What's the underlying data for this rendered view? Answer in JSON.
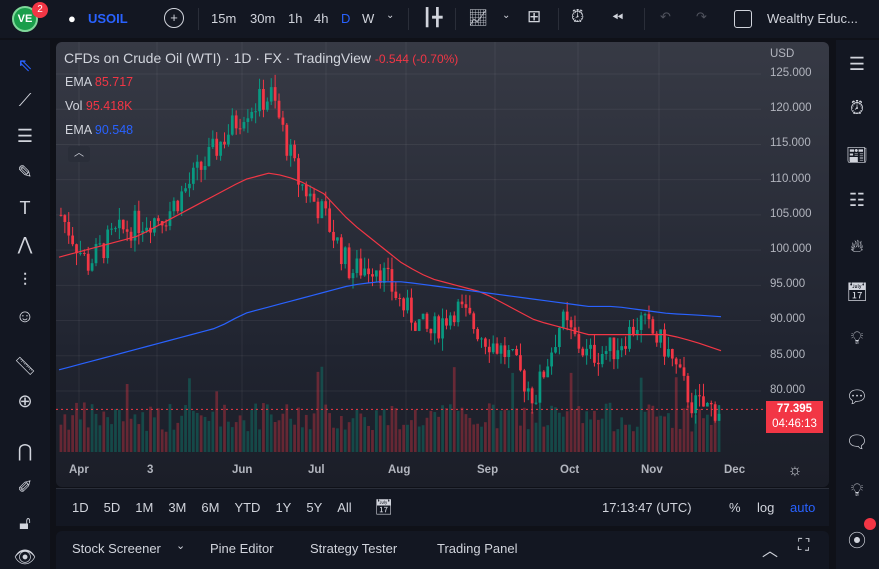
{
  "topbar": {
    "notification_count": "2",
    "symbol": "USOIL",
    "intervals": [
      "15m",
      "30m",
      "1h",
      "4h",
      "D",
      "W"
    ],
    "active_interval": "D",
    "account": "Wealthy Educ..."
  },
  "chart": {
    "title": "CFDs on Crude Oil (WTI) · 1D · FX  · TradingView",
    "change": "-0.544 (-0.70%)",
    "currency": "USD",
    "indicators": [
      {
        "name": "EMA",
        "value": "85.717",
        "color": "#f23645"
      },
      {
        "name": "Vol",
        "value": "95.418K",
        "color": "#f23645"
      },
      {
        "name": "EMA",
        "value": "90.548",
        "color": "#2962ff"
      }
    ],
    "price_ticks": [
      "125.000",
      "120.000",
      "115.000",
      "110.000",
      "105.000",
      "100.000",
      "95.000",
      "90.000",
      "85.000",
      "80.000"
    ],
    "time_ticks": [
      "Apr",
      "3",
      "Jun",
      "Jul",
      "Aug",
      "Sep",
      "Oct",
      "Nov",
      "Dec"
    ],
    "last_price": "77.395",
    "countdown": "04:46:13"
  },
  "chart_data": {
    "type": "candlestick",
    "ylim": [
      75,
      127
    ],
    "close_path": [
      105,
      98,
      102,
      104,
      105,
      110,
      115,
      120,
      122,
      110,
      105,
      97,
      98,
      92,
      88,
      92,
      88,
      85,
      79,
      90,
      85,
      86,
      90,
      86,
      78,
      77.395
    ],
    "ema_red_path": [
      99,
      100,
      101,
      102,
      104,
      106,
      108,
      110,
      111,
      110,
      108,
      104,
      101,
      98,
      96,
      95,
      94,
      92,
      90,
      89,
      88,
      88,
      88,
      88,
      87,
      85.717
    ],
    "ema_blue_path": [
      83,
      84,
      85,
      86,
      87,
      88,
      89,
      91,
      92,
      93,
      94,
      95,
      95.5,
      95.5,
      95,
      94.5,
      94,
      93.5,
      93,
      92.5,
      92,
      92,
      91.5,
      91,
      90.8,
      90.548
    ],
    "colors": {
      "up": "#089981",
      "down": "#f23645",
      "ema_red": "#f23645",
      "ema_blue": "#2962ff"
    }
  },
  "bottombar": {
    "ranges": [
      "1D",
      "5D",
      "1M",
      "3M",
      "6M",
      "YTD",
      "1Y",
      "5Y",
      "All"
    ],
    "clock": "17:13:47 (UTC)",
    "pct": "%",
    "log": "log",
    "auto": "auto"
  },
  "panel": {
    "tabs": [
      "Stock Screener",
      "Pine Editor",
      "Strategy Tester",
      "Trading Panel"
    ]
  }
}
